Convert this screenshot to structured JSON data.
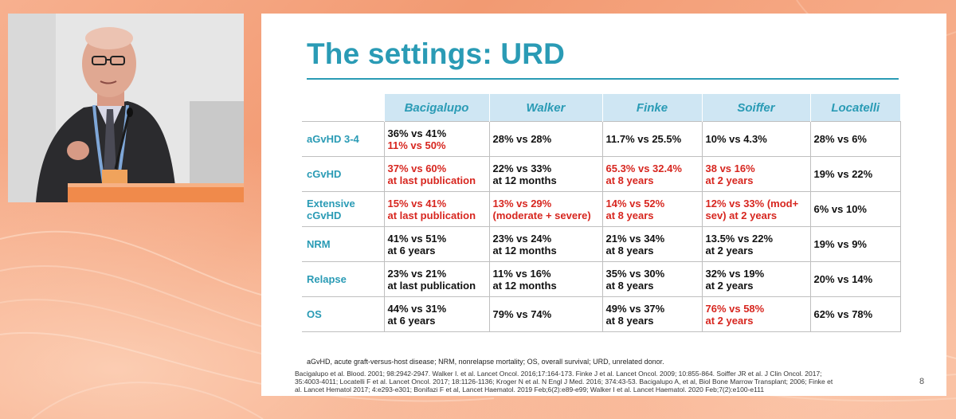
{
  "colors": {
    "accent": "#2a9bb5",
    "header_fill": "#cfe6f3",
    "highlight_red": "#d7261f",
    "background_orange": "#f4a27c"
  },
  "video": {
    "description_icon": "speaker-video-icon"
  },
  "slide": {
    "title": "The settings: URD",
    "columns": [
      "Bacigalupo",
      "Walker",
      "Finke",
      "Soiffer",
      "Locatelli"
    ],
    "rows": [
      {
        "label_lines": [
          "aGvHD 3-4"
        ],
        "cells": [
          [
            {
              "t": "36% vs 41%",
              "red": false
            },
            {
              "t": "11% vs 50%",
              "red": true
            }
          ],
          [
            {
              "t": "28% vs 28%",
              "red": false
            }
          ],
          [
            {
              "t": "11.7% vs 25.5%",
              "red": false
            }
          ],
          [
            {
              "t": "10% vs 4.3%",
              "red": false
            }
          ],
          [
            {
              "t": "28% vs 6%",
              "red": false
            }
          ]
        ]
      },
      {
        "label_lines": [
          "cGvHD"
        ],
        "cells": [
          [
            {
              "t": "37% vs 60%",
              "red": true
            },
            {
              "t": "at last publication",
              "red": true
            }
          ],
          [
            {
              "t": "22% vs 33%",
              "red": false
            },
            {
              "t": "at 12 months",
              "red": false
            }
          ],
          [
            {
              "t": "65.3% vs 32.4%",
              "red": true
            },
            {
              "t": "at 8 years",
              "red": true
            }
          ],
          [
            {
              "t": "38 vs 16%",
              "red": true
            },
            {
              "t": "at 2 years",
              "red": true
            }
          ],
          [
            {
              "t": "19% vs 22%",
              "red": false
            }
          ]
        ]
      },
      {
        "label_lines": [
          "Extensive",
          "cGvHD"
        ],
        "cells": [
          [
            {
              "t": "15% vs 41%",
              "red": true
            },
            {
              "t": "at last publication",
              "red": true
            }
          ],
          [
            {
              "t": "13% vs 29%",
              "red": true
            },
            {
              "t": "(moderate + severe)",
              "red": true
            }
          ],
          [
            {
              "t": "14% vs 52%",
              "red": true
            },
            {
              "t": "at 8 years",
              "red": true
            }
          ],
          [
            {
              "t": "12% vs 33% (mod+",
              "red": true
            },
            {
              "t": "sev) at 2 years",
              "red": true
            }
          ],
          [
            {
              "t": "6% vs 10%",
              "red": false
            }
          ]
        ]
      },
      {
        "label_lines": [
          "NRM"
        ],
        "cells": [
          [
            {
              "t": "41% vs 51%",
              "red": false
            },
            {
              "t": "at 6 years",
              "red": false
            }
          ],
          [
            {
              "t": "23% vs 24%",
              "red": false
            },
            {
              "t": "at 12 months",
              "red": false
            }
          ],
          [
            {
              "t": "21% vs 34%",
              "red": false
            },
            {
              "t": "at 8 years",
              "red": false
            }
          ],
          [
            {
              "t": "13.5% vs 22%",
              "red": false
            },
            {
              "t": "at 2 years",
              "red": false
            }
          ],
          [
            {
              "t": "19% vs 9%",
              "red": false
            }
          ]
        ]
      },
      {
        "label_lines": [
          "Relapse"
        ],
        "cells": [
          [
            {
              "t": "23% vs 21%",
              "red": false
            },
            {
              "t": "at last publication",
              "red": false
            }
          ],
          [
            {
              "t": "11% vs 16%",
              "red": false
            },
            {
              "t": "at 12 months",
              "red": false
            }
          ],
          [
            {
              "t": "35% vs 30%",
              "red": false
            },
            {
              "t": "at 8 years",
              "red": false
            }
          ],
          [
            {
              "t": " 32% vs 19%",
              "red": false
            },
            {
              "t": "at 2 years",
              "red": false
            }
          ],
          [
            {
              "t": "20% vs 14%",
              "red": false
            }
          ]
        ]
      },
      {
        "label_lines": [
          "OS"
        ],
        "cells": [
          [
            {
              "t": "44% vs 31%",
              "red": false
            },
            {
              "t": "at 6 years",
              "red": false
            }
          ],
          [
            {
              "t": "79% vs 74%",
              "red": false
            }
          ],
          [
            {
              "t": "49% vs 37%",
              "red": false
            },
            {
              "t": "at 8 years",
              "red": false
            }
          ],
          [
            {
              "t": "76% vs 58%",
              "red": true
            },
            {
              "t": "at 2 years",
              "red": true
            }
          ],
          [
            {
              "t": "62% vs 78%",
              "red": false
            }
          ]
        ]
      }
    ],
    "abbreviations": "aGvHD, acute graft-versus-host disease; NRM, nonrelapse mortality; OS, overall survival; URD, unrelated donor.",
    "references": [
      "Bacigalupo et al. Blood. 2001; 98:2942-2947. Walker I. et al. Lancet Oncol. 2016;17:164-173. Finke J et al. Lancet Oncol. 2009; 10:855-864. Soiffer JR et al. J Clin Oncol. 2017;",
      "35:4003-4011; Locatelli F et al. Lancet Oncol. 2017; 18:1126-1136; Kroger N et al. N Engl J Med. 2016; 374:43-53. Bacigalupo A, et al, Biol Bone Marrow Transplant; 2006; Finke et",
      "al. Lancet Hematol 2017; 4:e293-e301; Bonifazi F et al, Lancet Haematol. 2019 Feb;6(2):e89-e99; Walker I et al. Lancet Haematol. 2020 Feb;7(2):e100-e111"
    ],
    "page_number": "8"
  }
}
